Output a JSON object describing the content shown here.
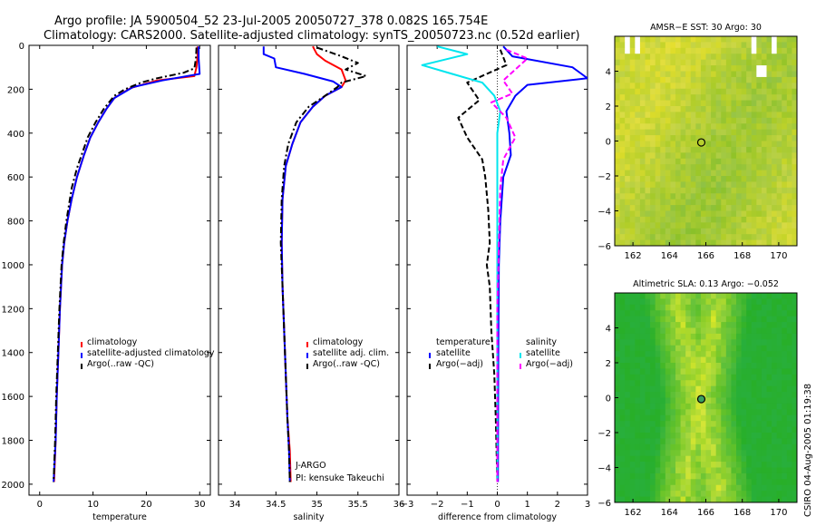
{
  "header": {
    "title_line1": "Argo profile: JA 5900504_52 23-Jul-2005 20050727_378 0.082S 165.754E",
    "title_line2": "Climatology: CARS2000. Satellite-adjusted climatology: synTS_20050723.nc (0.52d earlier)"
  },
  "side_label": "CSIRO 04-Aug-2005 01:19:38",
  "colors": {
    "red": "#ff0000",
    "blue": "#0000ff",
    "black": "#000000",
    "cyan": "#00e5ee",
    "magenta": "#ff00ff"
  },
  "chart_data": [
    {
      "type": "line",
      "name": "temperature",
      "xlabel": "temperature",
      "xlim": [
        -2,
        32
      ],
      "ylim": [
        2050,
        0
      ],
      "xticks": [
        0,
        10,
        20,
        30
      ],
      "xtick_labels": [
        "0",
        "10",
        "20",
        "30"
      ],
      "yticks": [
        0,
        200,
        400,
        600,
        800,
        1000,
        1200,
        1400,
        1600,
        1800,
        2000
      ],
      "ytick_labels": [
        "0",
        "200",
        "400",
        "600",
        "800",
        "1000",
        "1200",
        "1400",
        "1600",
        "1800",
        "2000"
      ],
      "legend": [
        "climatology",
        "satellite-adjusted climatology",
        "Argo(..raw -QC)"
      ],
      "series": [
        {
          "name": "climatology",
          "color": "red",
          "dash": "solid",
          "points": [
            [
              29.6,
              5
            ],
            [
              29.6,
              50
            ],
            [
              29.4,
              100
            ],
            [
              29.0,
              140
            ],
            [
              22,
              160
            ],
            [
              17,
              195
            ],
            [
              14,
              240
            ],
            [
              12.5,
              290
            ],
            [
              11,
              350
            ],
            [
              9.5,
              420
            ],
            [
              8.3,
              500
            ],
            [
              7,
              600
            ],
            [
              6,
              700
            ],
            [
              5.2,
              800
            ],
            [
              4.6,
              900
            ],
            [
              4.2,
              1000
            ],
            [
              3.8,
              1200
            ],
            [
              3.5,
              1400
            ],
            [
              3.2,
              1600
            ],
            [
              3.0,
              1800
            ],
            [
              2.7,
              1990
            ]
          ]
        },
        {
          "name": "satellite",
          "color": "blue",
          "dash": "solid",
          "points": [
            [
              29.8,
              5
            ],
            [
              29.8,
              60
            ],
            [
              30.0,
              130
            ],
            [
              23,
              160
            ],
            [
              17.5,
              190
            ],
            [
              14,
              240
            ],
            [
              12.5,
              290
            ],
            [
              11,
              350
            ],
            [
              9.5,
              420
            ],
            [
              8.3,
              500
            ],
            [
              7,
              600
            ],
            [
              6,
              700
            ],
            [
              5.2,
              800
            ],
            [
              4.6,
              900
            ],
            [
              4.2,
              1000
            ],
            [
              3.8,
              1200
            ],
            [
              3.5,
              1400
            ],
            [
              3.2,
              1600
            ],
            [
              3.0,
              1800
            ],
            [
              2.6,
              1990
            ]
          ]
        },
        {
          "name": "argo",
          "color": "black",
          "dash": "dashdot",
          "points": [
            [
              29.4,
              10
            ],
            [
              29.3,
              60
            ],
            [
              29.0,
              105
            ],
            [
              27,
              125
            ],
            [
              22,
              150
            ],
            [
              19,
              170
            ],
            [
              16,
              200
            ],
            [
              14,
              230
            ],
            [
              12,
              290
            ],
            [
              10.5,
              350
            ],
            [
              9,
              420
            ],
            [
              8,
              490
            ],
            [
              7,
              560
            ],
            [
              6,
              650
            ],
            [
              5,
              800
            ],
            [
              4.5,
              900
            ],
            [
              4.1,
              1000
            ],
            [
              3.7,
              1200
            ],
            [
              3.4,
              1400
            ],
            [
              3.1,
              1600
            ],
            [
              2.9,
              1800
            ],
            [
              2.6,
              1990
            ]
          ]
        }
      ]
    },
    {
      "type": "line",
      "name": "salinity",
      "xlabel": "salinity",
      "xlim": [
        33.8,
        36.0
      ],
      "ylim": [
        2050,
        0
      ],
      "xticks": [
        34,
        34.5,
        35,
        35.5,
        36
      ],
      "xtick_labels": [
        "34",
        "34.5",
        "35",
        "35.5",
        "36"
      ],
      "legend": [
        "climatology",
        "satellite adj. clim.",
        "Argo(..raw -QC)"
      ],
      "annotation": [
        "J-ARGO",
        "PI: kensuke Takeuchi"
      ],
      "series": [
        {
          "name": "climatology",
          "color": "red",
          "dash": "solid",
          "points": [
            [
              34.95,
              5
            ],
            [
              35.0,
              40
            ],
            [
              35.1,
              70
            ],
            [
              35.3,
              110
            ],
            [
              35.35,
              160
            ],
            [
              35.3,
              190
            ],
            [
              35.1,
              230
            ],
            [
              34.95,
              280
            ],
            [
              34.8,
              350
            ],
            [
              34.7,
              450
            ],
            [
              34.62,
              550
            ],
            [
              34.58,
              700
            ],
            [
              34.57,
              900
            ],
            [
              34.58,
              1100
            ],
            [
              34.6,
              1300
            ],
            [
              34.62,
              1500
            ],
            [
              34.64,
              1700
            ],
            [
              34.67,
              1850
            ],
            [
              34.68,
              1990
            ]
          ]
        },
        {
          "name": "satellite",
          "color": "blue",
          "dash": "solid",
          "points": [
            [
              34.35,
              5
            ],
            [
              34.35,
              40
            ],
            [
              34.48,
              60
            ],
            [
              34.5,
              100
            ],
            [
              34.85,
              130
            ],
            [
              35.2,
              165
            ],
            [
              35.3,
              190
            ],
            [
              35.1,
              230
            ],
            [
              34.95,
              280
            ],
            [
              34.8,
              350
            ],
            [
              34.7,
              450
            ],
            [
              34.62,
              550
            ],
            [
              34.58,
              700
            ],
            [
              34.57,
              900
            ],
            [
              34.58,
              1100
            ],
            [
              34.6,
              1300
            ],
            [
              34.62,
              1500
            ],
            [
              34.64,
              1700
            ],
            [
              34.66,
              1850
            ],
            [
              34.67,
              1990
            ]
          ]
        },
        {
          "name": "argo",
          "color": "black",
          "dash": "dashdot",
          "points": [
            [
              35.0,
              10
            ],
            [
              35.3,
              50
            ],
            [
              35.5,
              80
            ],
            [
              35.35,
              110
            ],
            [
              35.6,
              140
            ],
            [
              35.3,
              170
            ],
            [
              35.25,
              190
            ],
            [
              35.1,
              230
            ],
            [
              34.9,
              280
            ],
            [
              34.75,
              350
            ],
            [
              34.65,
              450
            ],
            [
              34.6,
              550
            ],
            [
              34.57,
              700
            ],
            [
              34.56,
              900
            ],
            [
              34.58,
              1100
            ],
            [
              34.6,
              1300
            ],
            [
              34.62,
              1500
            ],
            [
              34.64,
              1700
            ],
            [
              34.66,
              1850
            ],
            [
              34.67,
              1990
            ]
          ]
        }
      ]
    },
    {
      "type": "line",
      "name": "difference",
      "xlabel": "difference from climatology",
      "xlim": [
        -3,
        3
      ],
      "ylim": [
        2050,
        0
      ],
      "xticks": [
        -3,
        -2,
        -1,
        0,
        1,
        2,
        3
      ],
      "xtick_labels": [
        "−3",
        "−2",
        "−1",
        "0",
        "1",
        "2",
        "3"
      ],
      "legend_left_title": "temperature",
      "legend_right_title": "salinity",
      "legend": [
        "satellite",
        "Argo(−adj)",
        "satellite",
        "Argo(−adj)"
      ],
      "series": [
        {
          "name": "temperature satellite",
          "color": "blue",
          "dash": "solid",
          "points": [
            [
              0.2,
              5
            ],
            [
              0.5,
              50
            ],
            [
              2.5,
              100
            ],
            [
              3.0,
              150
            ],
            [
              1.0,
              180
            ],
            [
              0.6,
              230
            ],
            [
              0.3,
              300
            ],
            [
              0.4,
              400
            ],
            [
              0.45,
              500
            ],
            [
              0.2,
              600
            ],
            [
              0.1,
              800
            ],
            [
              0.05,
              1000
            ],
            [
              0.03,
              1500
            ],
            [
              0.02,
              1990
            ]
          ]
        },
        {
          "name": "temperature argo",
          "color": "black",
          "dash": "dashed",
          "points": [
            [
              0.1,
              20
            ],
            [
              0.3,
              90
            ],
            [
              -1.0,
              170
            ],
            [
              -0.6,
              250
            ],
            [
              -1.3,
              330
            ],
            [
              -1.0,
              420
            ],
            [
              -0.5,
              520
            ],
            [
              -0.4,
              600
            ],
            [
              -0.3,
              750
            ],
            [
              -0.25,
              900
            ],
            [
              -0.35,
              1000
            ],
            [
              -0.25,
              1100
            ],
            [
              -0.2,
              1300
            ],
            [
              -0.1,
              1500
            ],
            [
              -0.05,
              1700
            ],
            [
              0.0,
              1990
            ]
          ]
        },
        {
          "name": "salinity satellite",
          "color": "cyan",
          "dash": "solid",
          "points": [
            [
              -2.0,
              5
            ],
            [
              -1.0,
              40
            ],
            [
              -2.5,
              90
            ],
            [
              -1.5,
              130
            ],
            [
              -0.5,
              170
            ],
            [
              -0.1,
              230
            ],
            [
              0.1,
              300
            ],
            [
              0.0,
              400
            ],
            [
              0.0,
              600
            ],
            [
              0.0,
              1000
            ],
            [
              0.0,
              1500
            ],
            [
              0.0,
              1990
            ]
          ]
        },
        {
          "name": "salinity argo",
          "color": "magenta",
          "dash": "dashed",
          "points": [
            [
              0.3,
              20
            ],
            [
              1.0,
              60
            ],
            [
              0.6,
              110
            ],
            [
              0.2,
              160
            ],
            [
              0.5,
              220
            ],
            [
              -0.2,
              260
            ],
            [
              0.3,
              330
            ],
            [
              0.6,
              420
            ],
            [
              0.2,
              520
            ],
            [
              0.1,
              650
            ],
            [
              0.05,
              900
            ],
            [
              0.0,
              1200
            ],
            [
              0.0,
              1500
            ],
            [
              0.0,
              1990
            ]
          ]
        }
      ]
    }
  ],
  "maps": [
    {
      "name": "sst",
      "title": "AMSR−E SST: 30 Argo: 30",
      "xticks": [
        "162",
        "164",
        "166",
        "168",
        "170"
      ],
      "yticks": [
        "4",
        "2",
        "0",
        "−2",
        "−4",
        "−6"
      ],
      "marker": [
        165.75,
        -0.08
      ],
      "type": "sst"
    },
    {
      "name": "sla",
      "title": "Altimetric SLA: 0.13 Argo: −0.052",
      "xticks": [
        "162",
        "164",
        "166",
        "168",
        "170"
      ],
      "yticks": [
        "4",
        "2",
        "0",
        "−2",
        "−4",
        "−6"
      ],
      "marker": [
        165.75,
        -0.08
      ],
      "type": "sla"
    }
  ]
}
